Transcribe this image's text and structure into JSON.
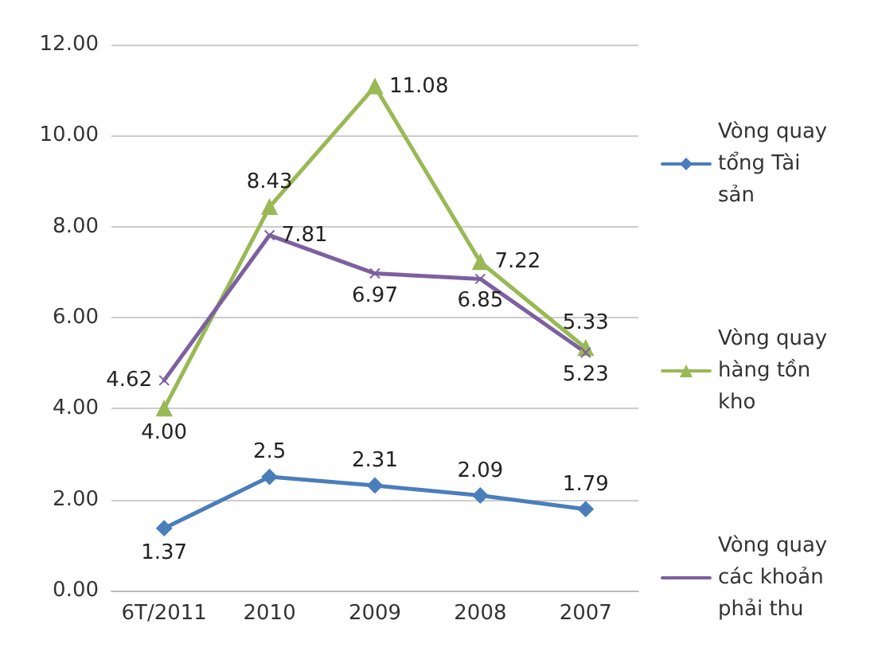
{
  "chart_data": {
    "type": "line",
    "categories": [
      "6T/2011",
      "2010",
      "2009",
      "2008",
      "2007"
    ],
    "ylim": [
      0,
      12
    ],
    "yticks": [
      {
        "value": 0,
        "label": "0.00"
      },
      {
        "value": 2,
        "label": "2.00"
      },
      {
        "value": 4,
        "label": "4.00"
      },
      {
        "value": 6,
        "label": "6.00"
      },
      {
        "value": 8,
        "label": "8.00"
      },
      {
        "value": 10,
        "label": "10.00"
      },
      {
        "value": 12,
        "label": "12.00"
      }
    ],
    "grid": "y",
    "legend": "right",
    "line_style": "solid",
    "series": [
      {
        "name": "Vòng quay tổng Tài sản",
        "color": "#4a7ebb",
        "marker": "diamond",
        "values": [
          1.37,
          2.5,
          2.31,
          2.09,
          1.79
        ],
        "value_labels": [
          "1.37",
          "2.5",
          "2.31",
          "2.09",
          "1.79"
        ]
      },
      {
        "name": "Vòng quay hàng tồn kho",
        "color": "#98b954",
        "marker": "triangle",
        "values": [
          4.0,
          8.43,
          11.08,
          7.22,
          5.33
        ],
        "value_labels": [
          "4.00",
          "8.43",
          "11.08",
          "7.22",
          "5.33"
        ]
      },
      {
        "name": "Vòng quay các khoản phải thu",
        "color": "#7d60a0",
        "marker": "cross",
        "values": [
          4.62,
          7.81,
          6.97,
          6.85,
          5.23
        ],
        "value_labels": [
          "4.62",
          "7.81",
          "6.97",
          "6.85",
          "5.23"
        ]
      }
    ]
  }
}
